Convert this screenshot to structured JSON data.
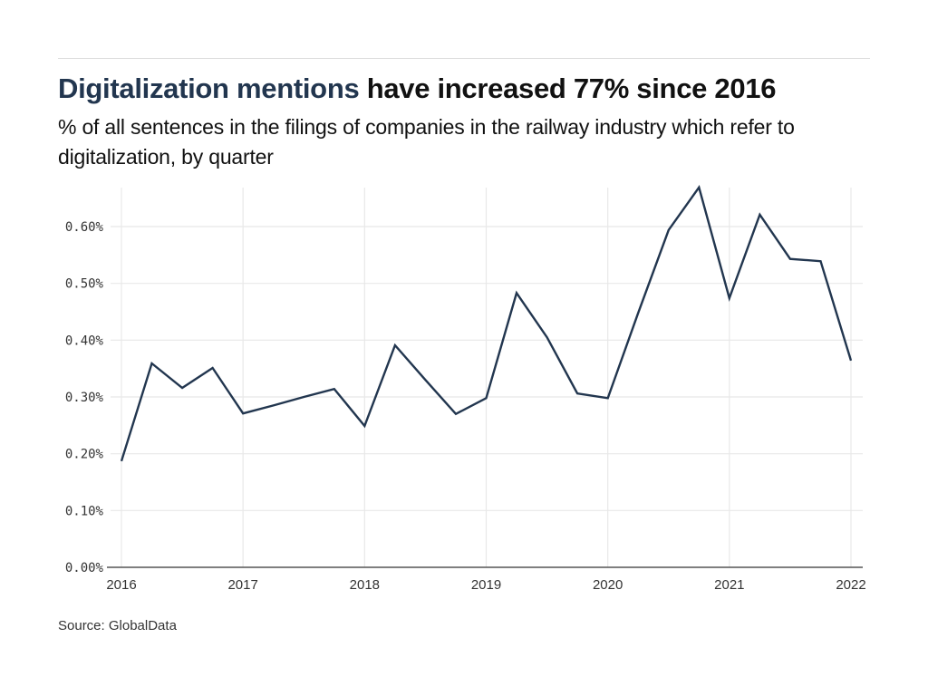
{
  "header": {
    "title_highlight": "Digitalization mentions",
    "title_rest": " have increased 77% since 2016",
    "subtitle": "% of all sentences in the filings of companies in the railway industry which refer to digitalization, by quarter"
  },
  "footer": {
    "source": "Source: GlobalData"
  },
  "colors": {
    "line": "#22364f",
    "highlight": "#22364f",
    "grid": "#e8e8e8",
    "axis": "#555555"
  },
  "chart_data": {
    "type": "line",
    "title": "Digitalization mentions have increased 77% since 2016",
    "subtitle": "% of all sentences in the filings of companies in the railway industry which refer to digitalization, by quarter",
    "xlabel": "",
    "ylabel": "",
    "x_tick_labels": [
      "2016",
      "2017",
      "2018",
      "2019",
      "2020",
      "2021",
      "2022"
    ],
    "y_tick_labels": [
      "0.00%",
      "0.10%",
      "0.20%",
      "0.30%",
      "0.40%",
      "0.50%",
      "0.60%"
    ],
    "y_ticks": [
      0,
      0.1,
      0.2,
      0.3,
      0.4,
      0.5,
      0.6
    ],
    "xlim": [
      2016,
      2022.1
    ],
    "ylim": [
      0,
      0.67
    ],
    "grid": true,
    "legend": "none",
    "series": [
      {
        "name": "Digitalization mentions (%)",
        "x": [
          2016.0,
          2016.25,
          2016.5,
          2016.75,
          2017.0,
          2017.25,
          2017.5,
          2017.75,
          2018.0,
          2018.25,
          2018.5,
          2018.75,
          2019.0,
          2019.25,
          2019.5,
          2019.75,
          2020.0,
          2020.25,
          2020.5,
          2020.75,
          2021.0,
          2021.25,
          2021.5,
          2021.75,
          2022.0
        ],
        "values": [
          0.187,
          0.359,
          0.316,
          0.351,
          0.271,
          0.285,
          0.3,
          0.314,
          0.249,
          0.391,
          0.33,
          0.27,
          0.298,
          0.483,
          0.405,
          0.306,
          0.298,
          0.448,
          0.594,
          0.669,
          0.474,
          0.621,
          0.543,
          0.539,
          0.364
        ]
      }
    ],
    "source": "Source: GlobalData"
  }
}
